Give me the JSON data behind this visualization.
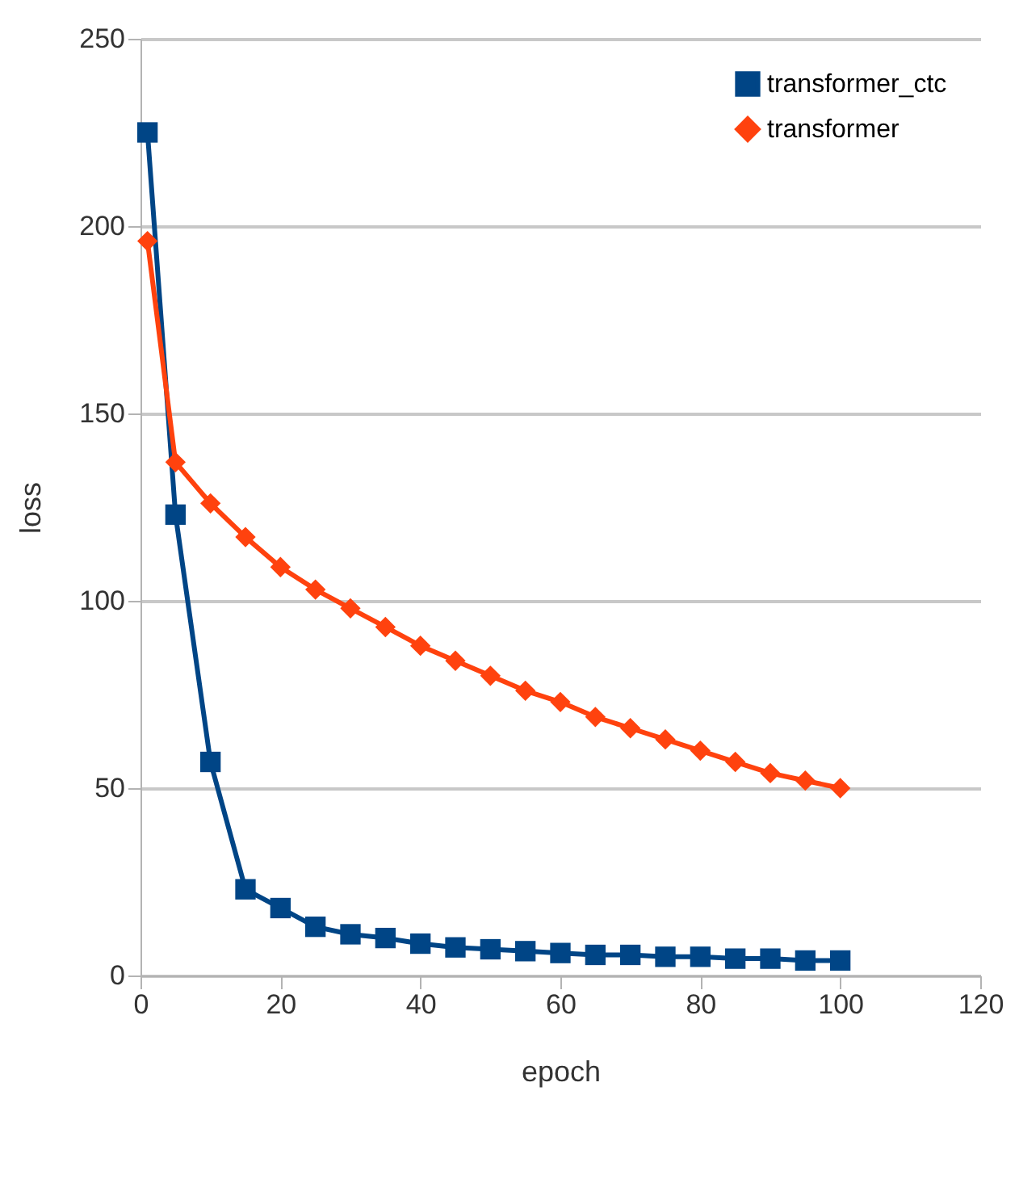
{
  "chart_data": {
    "type": "line",
    "xlabel": "epoch",
    "ylabel": "loss",
    "x": [
      1,
      5,
      10,
      15,
      20,
      25,
      30,
      35,
      40,
      45,
      50,
      55,
      60,
      65,
      70,
      75,
      80,
      85,
      90,
      95,
      100
    ],
    "series": [
      {
        "name": "transformer_ctc",
        "color": "#004586",
        "marker": "square",
        "values": [
          225,
          123,
          57,
          23,
          18,
          13,
          11,
          10,
          8.5,
          7.5,
          7,
          6.5,
          6,
          5.5,
          5.5,
          5,
          5,
          4.5,
          4.5,
          4,
          4
        ]
      },
      {
        "name": "transformer",
        "color": "#ff420e",
        "marker": "diamond",
        "values": [
          196,
          137,
          126,
          117,
          109,
          103,
          98,
          93,
          88,
          84,
          80,
          76,
          73,
          69,
          66,
          63,
          60,
          57,
          54,
          52,
          50
        ]
      }
    ],
    "xlim": [
      0,
      120
    ],
    "xticks": [
      0,
      20,
      40,
      60,
      80,
      100,
      120
    ],
    "ylim": [
      0,
      250
    ],
    "yticks": [
      0,
      50,
      100,
      150,
      200,
      250
    ],
    "grid": "y",
    "legend": "top right",
    "line_style": "solid"
  }
}
